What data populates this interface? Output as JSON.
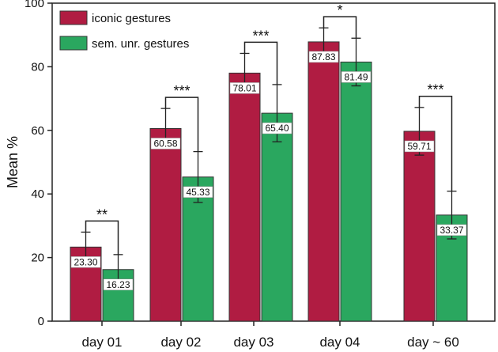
{
  "chart_data": {
    "type": "bar",
    "title": "",
    "xlabel": "",
    "ylabel": "Mean %",
    "ylim": [
      0,
      100
    ],
    "yticks": [
      0,
      20,
      40,
      60,
      80,
      100
    ],
    "grid": false,
    "legend_position": "top-left",
    "categories": [
      "day 01",
      "day 02",
      "day 03",
      "day 04",
      "day ~ 60"
    ],
    "series": [
      {
        "name": "iconic gestures",
        "color": "#b01c42",
        "values": [
          23.3,
          60.58,
          78.01,
          87.83,
          59.71
        ],
        "value_labels": [
          "23.30",
          "60.58",
          "78.01",
          "87.83",
          "59.71"
        ],
        "error_bars": [
          4.7,
          6.3,
          6.2,
          4.4,
          7.5
        ]
      },
      {
        "name": "sem. unr. gestures",
        "color": "#2aa75f",
        "values": [
          16.23,
          45.33,
          65.4,
          81.49,
          33.37
        ],
        "value_labels": [
          "16.23",
          "45.33",
          "65.40",
          "81.49",
          "33.37"
        ],
        "error_bars": [
          4.7,
          8.0,
          9.0,
          7.5,
          7.5
        ]
      }
    ],
    "significance": [
      "**",
      "***",
      "***",
      "*",
      "***"
    ]
  }
}
